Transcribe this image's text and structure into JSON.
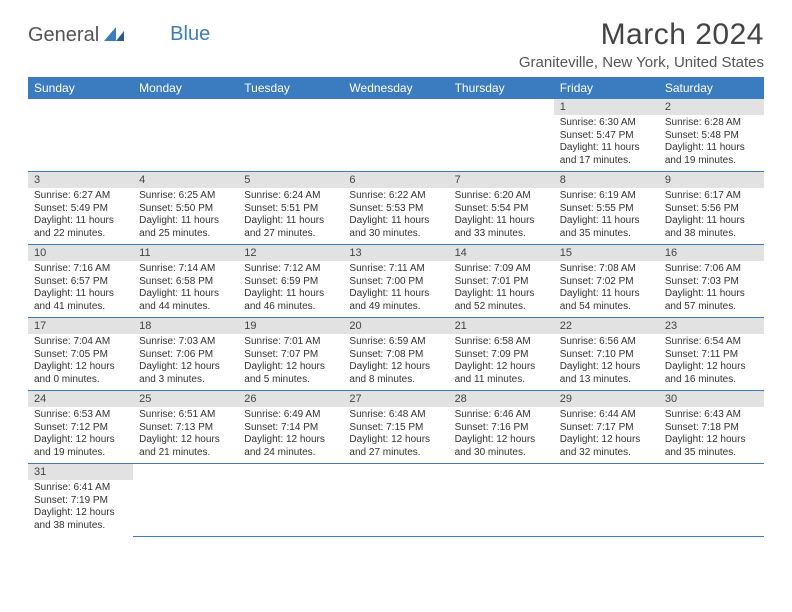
{
  "logo": {
    "text1": "General",
    "text2": "Blue",
    "color1": "#555555",
    "color2": "#3b7bbf"
  },
  "title": "March 2024",
  "location": "Graniteville, New York, United States",
  "header_bg": "#3b7bbf",
  "header_text_color": "#ffffff",
  "daynum_bg": "#e2e2e2",
  "border_color": "#3b7bbf",
  "weekdays": [
    "Sunday",
    "Monday",
    "Tuesday",
    "Wednesday",
    "Thursday",
    "Friday",
    "Saturday"
  ],
  "weeks": [
    [
      null,
      null,
      null,
      null,
      null,
      {
        "n": "1",
        "sunrise": "Sunrise: 6:30 AM",
        "sunset": "Sunset: 5:47 PM",
        "day": "Daylight: 11 hours and 17 minutes."
      },
      {
        "n": "2",
        "sunrise": "Sunrise: 6:28 AM",
        "sunset": "Sunset: 5:48 PM",
        "day": "Daylight: 11 hours and 19 minutes."
      }
    ],
    [
      {
        "n": "3",
        "sunrise": "Sunrise: 6:27 AM",
        "sunset": "Sunset: 5:49 PM",
        "day": "Daylight: 11 hours and 22 minutes."
      },
      {
        "n": "4",
        "sunrise": "Sunrise: 6:25 AM",
        "sunset": "Sunset: 5:50 PM",
        "day": "Daylight: 11 hours and 25 minutes."
      },
      {
        "n": "5",
        "sunrise": "Sunrise: 6:24 AM",
        "sunset": "Sunset: 5:51 PM",
        "day": "Daylight: 11 hours and 27 minutes."
      },
      {
        "n": "6",
        "sunrise": "Sunrise: 6:22 AM",
        "sunset": "Sunset: 5:53 PM",
        "day": "Daylight: 11 hours and 30 minutes."
      },
      {
        "n": "7",
        "sunrise": "Sunrise: 6:20 AM",
        "sunset": "Sunset: 5:54 PM",
        "day": "Daylight: 11 hours and 33 minutes."
      },
      {
        "n": "8",
        "sunrise": "Sunrise: 6:19 AM",
        "sunset": "Sunset: 5:55 PM",
        "day": "Daylight: 11 hours and 35 minutes."
      },
      {
        "n": "9",
        "sunrise": "Sunrise: 6:17 AM",
        "sunset": "Sunset: 5:56 PM",
        "day": "Daylight: 11 hours and 38 minutes."
      }
    ],
    [
      {
        "n": "10",
        "sunrise": "Sunrise: 7:16 AM",
        "sunset": "Sunset: 6:57 PM",
        "day": "Daylight: 11 hours and 41 minutes."
      },
      {
        "n": "11",
        "sunrise": "Sunrise: 7:14 AM",
        "sunset": "Sunset: 6:58 PM",
        "day": "Daylight: 11 hours and 44 minutes."
      },
      {
        "n": "12",
        "sunrise": "Sunrise: 7:12 AM",
        "sunset": "Sunset: 6:59 PM",
        "day": "Daylight: 11 hours and 46 minutes."
      },
      {
        "n": "13",
        "sunrise": "Sunrise: 7:11 AM",
        "sunset": "Sunset: 7:00 PM",
        "day": "Daylight: 11 hours and 49 minutes."
      },
      {
        "n": "14",
        "sunrise": "Sunrise: 7:09 AM",
        "sunset": "Sunset: 7:01 PM",
        "day": "Daylight: 11 hours and 52 minutes."
      },
      {
        "n": "15",
        "sunrise": "Sunrise: 7:08 AM",
        "sunset": "Sunset: 7:02 PM",
        "day": "Daylight: 11 hours and 54 minutes."
      },
      {
        "n": "16",
        "sunrise": "Sunrise: 7:06 AM",
        "sunset": "Sunset: 7:03 PM",
        "day": "Daylight: 11 hours and 57 minutes."
      }
    ],
    [
      {
        "n": "17",
        "sunrise": "Sunrise: 7:04 AM",
        "sunset": "Sunset: 7:05 PM",
        "day": "Daylight: 12 hours and 0 minutes."
      },
      {
        "n": "18",
        "sunrise": "Sunrise: 7:03 AM",
        "sunset": "Sunset: 7:06 PM",
        "day": "Daylight: 12 hours and 3 minutes."
      },
      {
        "n": "19",
        "sunrise": "Sunrise: 7:01 AM",
        "sunset": "Sunset: 7:07 PM",
        "day": "Daylight: 12 hours and 5 minutes."
      },
      {
        "n": "20",
        "sunrise": "Sunrise: 6:59 AM",
        "sunset": "Sunset: 7:08 PM",
        "day": "Daylight: 12 hours and 8 minutes."
      },
      {
        "n": "21",
        "sunrise": "Sunrise: 6:58 AM",
        "sunset": "Sunset: 7:09 PM",
        "day": "Daylight: 12 hours and 11 minutes."
      },
      {
        "n": "22",
        "sunrise": "Sunrise: 6:56 AM",
        "sunset": "Sunset: 7:10 PM",
        "day": "Daylight: 12 hours and 13 minutes."
      },
      {
        "n": "23",
        "sunrise": "Sunrise: 6:54 AM",
        "sunset": "Sunset: 7:11 PM",
        "day": "Daylight: 12 hours and 16 minutes."
      }
    ],
    [
      {
        "n": "24",
        "sunrise": "Sunrise: 6:53 AM",
        "sunset": "Sunset: 7:12 PM",
        "day": "Daylight: 12 hours and 19 minutes."
      },
      {
        "n": "25",
        "sunrise": "Sunrise: 6:51 AM",
        "sunset": "Sunset: 7:13 PM",
        "day": "Daylight: 12 hours and 21 minutes."
      },
      {
        "n": "26",
        "sunrise": "Sunrise: 6:49 AM",
        "sunset": "Sunset: 7:14 PM",
        "day": "Daylight: 12 hours and 24 minutes."
      },
      {
        "n": "27",
        "sunrise": "Sunrise: 6:48 AM",
        "sunset": "Sunset: 7:15 PM",
        "day": "Daylight: 12 hours and 27 minutes."
      },
      {
        "n": "28",
        "sunrise": "Sunrise: 6:46 AM",
        "sunset": "Sunset: 7:16 PM",
        "day": "Daylight: 12 hours and 30 minutes."
      },
      {
        "n": "29",
        "sunrise": "Sunrise: 6:44 AM",
        "sunset": "Sunset: 7:17 PM",
        "day": "Daylight: 12 hours and 32 minutes."
      },
      {
        "n": "30",
        "sunrise": "Sunrise: 6:43 AM",
        "sunset": "Sunset: 7:18 PM",
        "day": "Daylight: 12 hours and 35 minutes."
      }
    ],
    [
      {
        "n": "31",
        "sunrise": "Sunrise: 6:41 AM",
        "sunset": "Sunset: 7:19 PM",
        "day": "Daylight: 12 hours and 38 minutes."
      },
      null,
      null,
      null,
      null,
      null,
      null
    ]
  ]
}
